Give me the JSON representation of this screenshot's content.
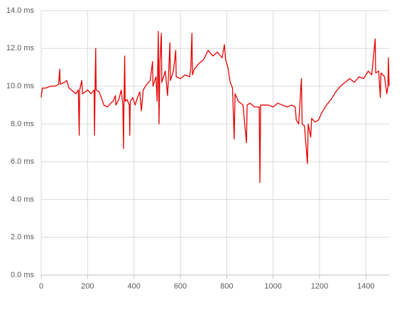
{
  "chart_data": {
    "type": "line",
    "x": [
      0,
      5,
      20,
      40,
      60,
      75,
      80,
      82,
      100,
      110,
      120,
      140,
      150,
      160,
      164,
      166,
      175,
      178,
      190,
      200,
      215,
      228,
      230,
      232,
      235,
      237,
      250,
      262,
      270,
      285,
      300,
      310,
      320,
      322,
      335,
      345,
      352,
      355,
      357,
      360,
      362,
      370,
      380,
      382,
      384,
      395,
      405,
      415,
      425,
      432,
      440,
      455,
      470,
      480,
      482,
      495,
      500,
      505,
      508,
      512,
      518,
      520,
      535,
      545,
      555,
      557,
      570,
      580,
      582,
      600,
      620,
      640,
      645,
      650,
      652,
      660,
      680,
      700,
      720,
      740,
      760,
      780,
      790,
      795,
      805,
      815,
      825,
      832,
      836,
      850,
      870,
      885,
      888,
      900,
      920,
      940,
      943,
      946,
      960,
      980,
      1000,
      1020,
      1040,
      1060,
      1080,
      1095,
      1100,
      1110,
      1122,
      1125,
      1135,
      1148,
      1151,
      1162,
      1166,
      1180,
      1195,
      1210,
      1230,
      1250,
      1270,
      1290,
      1310,
      1330,
      1350,
      1370,
      1390,
      1410,
      1425,
      1440,
      1442,
      1455,
      1462,
      1465,
      1480,
      1490,
      1495,
      1497,
      1500
    ],
    "series": [
      {
        "color": "#e60000",
        "values": [
          9.4,
          9.9,
          9.9,
          10.0,
          10.0,
          10.1,
          10.9,
          10.1,
          10.2,
          10.3,
          9.9,
          9.7,
          9.6,
          9.8,
          7.4,
          9.8,
          10.3,
          9.6,
          9.7,
          9.8,
          9.6,
          9.8,
          7.4,
          9.6,
          12.0,
          9.8,
          9.7,
          9.3,
          9.0,
          8.9,
          9.1,
          9.2,
          9.5,
          9.0,
          9.3,
          9.8,
          9.0,
          6.7,
          9.2,
          11.6,
          9.2,
          9.3,
          9.0,
          7.4,
          9.2,
          9.4,
          9.0,
          9.4,
          9.7,
          8.7,
          9.8,
          10.1,
          10.3,
          11.3,
          10.0,
          10.5,
          9.2,
          12.9,
          8.0,
          11.3,
          12.8,
          10.2,
          10.8,
          9.5,
          12.3,
          10.3,
          10.8,
          11.9,
          10.5,
          10.4,
          10.6,
          10.5,
          11.0,
          12.8,
          10.6,
          10.9,
          11.2,
          11.4,
          11.9,
          11.6,
          11.8,
          11.5,
          12.2,
          11.4,
          11.0,
          10.2,
          9.9,
          7.2,
          9.6,
          9.2,
          9.0,
          7.0,
          9.0,
          9.1,
          8.9,
          8.9,
          4.9,
          9.0,
          9.0,
          9.0,
          8.9,
          9.1,
          9.0,
          8.9,
          9.0,
          8.9,
          8.2,
          8.0,
          10.4,
          8.0,
          7.9,
          5.9,
          8.0,
          7.3,
          8.3,
          8.1,
          8.2,
          8.6,
          9.0,
          9.3,
          9.7,
          10.0,
          10.2,
          10.4,
          10.2,
          10.5,
          10.4,
          10.8,
          10.6,
          12.5,
          10.7,
          10.8,
          9.4,
          10.7,
          10.5,
          9.6,
          10.0,
          11.5,
          10.0
        ]
      }
    ],
    "xlim": [
      0,
      1500
    ],
    "xticks": [
      0,
      200,
      400,
      600,
      800,
      1000,
      1200,
      1400
    ],
    "ylim": [
      0,
      14
    ],
    "yticks": [
      {
        "value": 0,
        "label": "0.0 ms"
      },
      {
        "value": 2,
        "label": "2.0 ms"
      },
      {
        "value": 4,
        "label": "4.0 ms"
      },
      {
        "value": 6,
        "label": "6.0 ms"
      },
      {
        "value": 8,
        "label": "8.0 ms"
      },
      {
        "value": 10,
        "label": "10.0 ms"
      },
      {
        "value": 12,
        "label": "12.0 ms"
      },
      {
        "value": 14,
        "label": "14.0 ms"
      }
    ],
    "grid": true
  }
}
